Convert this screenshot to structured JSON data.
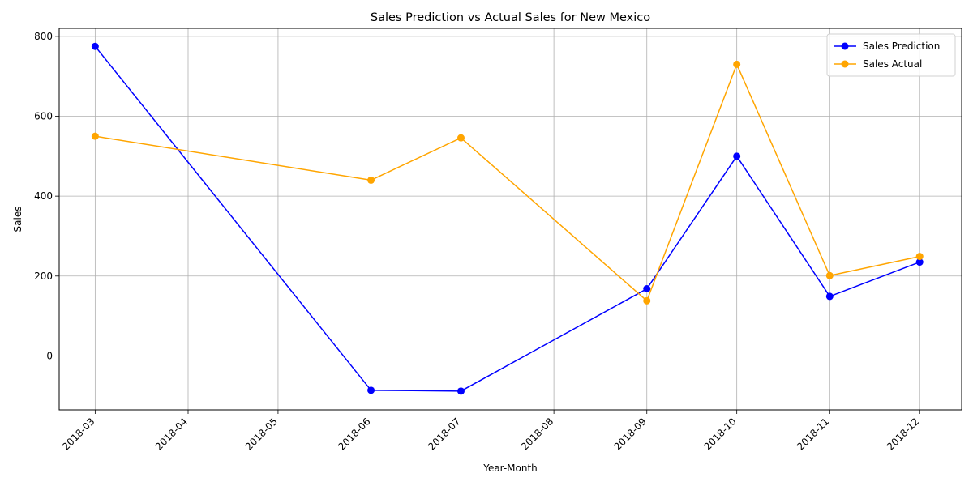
{
  "chart_data": {
    "type": "line",
    "title": "Sales Prediction vs Actual Sales for New Mexico",
    "xlabel": "Year-Month",
    "ylabel": "Sales",
    "x_ticks": [
      "2018-03",
      "2018-04",
      "2018-05",
      "2018-06",
      "2018-07",
      "2018-08",
      "2018-09",
      "2018-10",
      "2018-11",
      "2018-12"
    ],
    "y_ticks": [
      0,
      200,
      400,
      600,
      800
    ],
    "ylim": [
      -135,
      820
    ],
    "xlim": [
      "2018-02-17",
      "2018-12-15"
    ],
    "grid": true,
    "legend_position": "top-right",
    "series": [
      {
        "name": "Sales Prediction",
        "color": "#0000ff",
        "marker": "circle",
        "points": [
          {
            "x": "2018-03",
            "y": 775
          },
          {
            "x": "2018-06",
            "y": -86
          },
          {
            "x": "2018-07",
            "y": -88
          },
          {
            "x": "2018-09",
            "y": 168
          },
          {
            "x": "2018-10",
            "y": 500
          },
          {
            "x": "2018-11",
            "y": 149
          },
          {
            "x": "2018-12",
            "y": 235
          }
        ]
      },
      {
        "name": "Sales Actual",
        "color": "#ffa500",
        "marker": "circle",
        "points": [
          {
            "x": "2018-03",
            "y": 550
          },
          {
            "x": "2018-06",
            "y": 440
          },
          {
            "x": "2018-07",
            "y": 546
          },
          {
            "x": "2018-09",
            "y": 138
          },
          {
            "x": "2018-10",
            "y": 730
          },
          {
            "x": "2018-11",
            "y": 201
          },
          {
            "x": "2018-12",
            "y": 249
          }
        ]
      }
    ]
  }
}
